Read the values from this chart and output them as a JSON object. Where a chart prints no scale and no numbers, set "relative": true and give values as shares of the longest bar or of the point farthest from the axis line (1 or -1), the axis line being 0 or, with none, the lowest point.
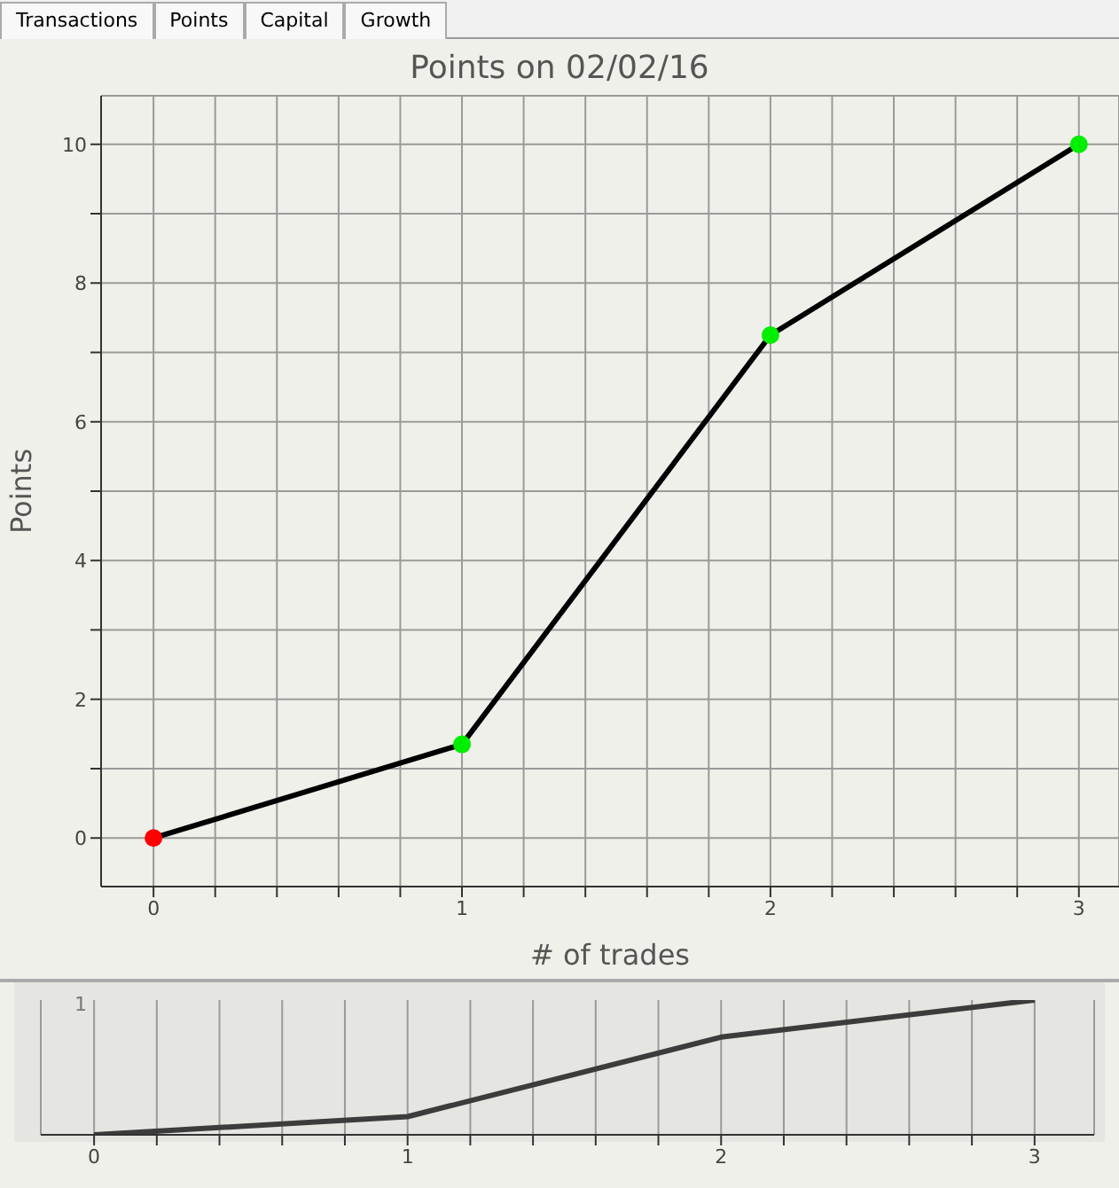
{
  "chart_data": [
    {
      "type": "line",
      "title": "Points on 02/02/16",
      "xlabel": "# of trades",
      "ylabel": "Points",
      "annotations": [
        "Transactions",
        "Points",
        "Capital",
        "Growth"
      ],
      "x": [
        0,
        1,
        2,
        3
      ],
      "series": [
        {
          "color": "#000000",
          "values": [
            0,
            1.35,
            7.25,
            10
          ]
        }
      ],
      "colors": [
        "#ff0000",
        "#00ee00",
        "#00ee00",
        "#00ee00"
      ],
      "marker": "circle",
      "line_style": "solid",
      "grid": true,
      "xlim": [
        -0.17,
        3.13
      ],
      "ylim": [
        -0.7,
        10.7
      ],
      "xticks": [
        0,
        {
          "value": 0.2,
          "label": null
        },
        {
          "value": 0.4,
          "label": null
        },
        {
          "value": 0.6,
          "label": null
        },
        {
          "value": 0.8,
          "label": null
        },
        1,
        {
          "value": 1.2,
          "label": null
        },
        {
          "value": 1.4,
          "label": null
        },
        {
          "value": 1.6,
          "label": null
        },
        {
          "value": 1.8,
          "label": null
        },
        2,
        {
          "value": 2.2,
          "label": null
        },
        {
          "value": 2.4,
          "label": null
        },
        {
          "value": 2.6,
          "label": null
        },
        {
          "value": 2.8,
          "label": null
        },
        3
      ],
      "yticks": [
        0,
        {
          "value": 1,
          "label": null
        },
        2,
        {
          "value": 3,
          "label": null
        },
        4,
        {
          "value": 5,
          "label": null
        },
        6,
        {
          "value": 7,
          "label": null
        },
        8,
        {
          "value": 9,
          "label": null
        },
        10
      ]
    },
    {
      "type": "line",
      "relative": true,
      "annotations": [
        "1"
      ],
      "x": [
        0,
        1,
        2,
        3
      ],
      "series": [
        {
          "color": "#3c3c3c",
          "values": [
            0,
            0.135,
            0.725,
            1
          ]
        }
      ],
      "marker": "none",
      "line_style": "solid",
      "grid": "x",
      "xlim": [
        -0.17,
        3.19
      ],
      "xticks": [
        0,
        {
          "value": 0.2,
          "label": null
        },
        {
          "value": 0.4,
          "label": null
        },
        {
          "value": 0.6,
          "label": null
        },
        {
          "value": 0.8,
          "label": null
        },
        1,
        {
          "value": 1.2,
          "label": null
        },
        {
          "value": 1.4,
          "label": null
        },
        {
          "value": 1.6,
          "label": null
        },
        {
          "value": 1.8,
          "label": null
        },
        2,
        {
          "value": 2.2,
          "label": null
        },
        {
          "value": 2.4,
          "label": null
        },
        {
          "value": 2.6,
          "label": null
        },
        {
          "value": 2.8,
          "label": null
        },
        3
      ]
    }
  ]
}
